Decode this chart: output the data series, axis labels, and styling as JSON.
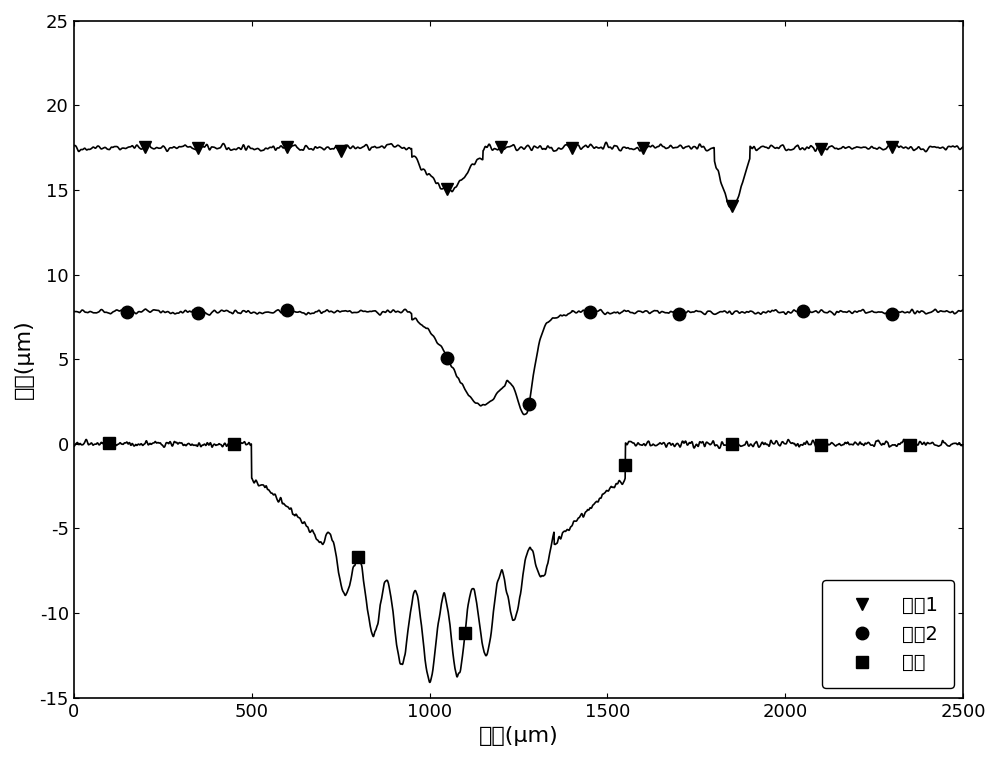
{
  "title": "",
  "xlabel": "长度(μm)",
  "ylabel": "深度(μm)",
  "xlim": [
    0,
    2500
  ],
  "ylim": [
    -15,
    25
  ],
  "xticks": [
    0,
    500,
    1000,
    1500,
    2000,
    2500
  ],
  "yticks": [
    -15,
    -10,
    -5,
    0,
    5,
    10,
    15,
    20,
    25
  ],
  "legend_labels": [
    "方案1",
    "方案2",
    "基体"
  ],
  "legend_markers": [
    "v",
    "o",
    "s"
  ],
  "line_color": "#000000",
  "background_color": "#ffffff",
  "figsize": [
    10,
    7.6
  ],
  "dpi": 100
}
